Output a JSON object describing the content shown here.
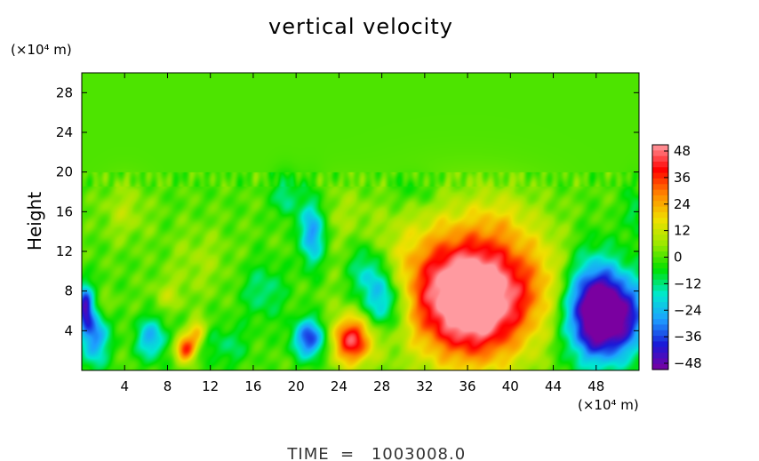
{
  "chart_data": {
    "type": "heatmap",
    "title": "vertical velocity",
    "ylabel": "Height",
    "y_units": "(×10⁴ m)",
    "x_units": "(×10⁴ m)",
    "xlim": [
      0,
      52
    ],
    "ylim": [
      0,
      30
    ],
    "x_ticks": [
      4,
      8,
      12,
      16,
      20,
      24,
      28,
      32,
      36,
      40,
      44,
      48
    ],
    "y_ticks": [
      4,
      8,
      12,
      16,
      20,
      24,
      28
    ],
    "colorbar": {
      "ticks": [
        48,
        36,
        24,
        12,
        0,
        -12,
        -24,
        -36,
        -48
      ],
      "tick_labels": [
        "48",
        "36",
        "24",
        "12",
        "0",
        "−12",
        "−24",
        "−36",
        "−48"
      ],
      "range": [
        -48,
        48
      ],
      "colors": [
        "#7a00a0",
        "#1a1ad8",
        "#1ea0ff",
        "#00e8d0",
        "#00e000",
        "#9ae800",
        "#f0e000",
        "#ff8800",
        "#ff0000",
        "#ff9aa0"
      ]
    },
    "background_value": 0,
    "features": [
      {
        "x": 36.5,
        "y": 6.5,
        "value": 46,
        "sx": 3.6,
        "sy": 4.2
      },
      {
        "x": 35.5,
        "y": 9.5,
        "value": 24,
        "sx": 5.5,
        "sy": 4.5
      },
      {
        "x": 25.2,
        "y": 3.0,
        "value": 40,
        "sx": 1.4,
        "sy": 1.7
      },
      {
        "x": 9.7,
        "y": 2.2,
        "value": 36,
        "sx": 0.7,
        "sy": 0.9
      },
      {
        "x": 10.8,
        "y": 4.0,
        "value": 20,
        "sx": 0.6,
        "sy": 0.8
      },
      {
        "x": 49.5,
        "y": 5.5,
        "value": -48,
        "sx": 2.4,
        "sy": 3.0
      },
      {
        "x": 47.5,
        "y": 6.5,
        "value": -30,
        "sx": 1.8,
        "sy": 3.8
      },
      {
        "x": 21.3,
        "y": 3.2,
        "value": -36,
        "sx": 1.1,
        "sy": 1.4
      },
      {
        "x": 21.5,
        "y": 14.0,
        "value": -30,
        "sx": 0.8,
        "sy": 2.4
      },
      {
        "x": 28.2,
        "y": 7.0,
        "value": -28,
        "sx": 1.4,
        "sy": 2.2
      },
      {
        "x": 26.5,
        "y": 10.0,
        "value": -18,
        "sx": 1.2,
        "sy": 2.0
      },
      {
        "x": 6.5,
        "y": 3.2,
        "value": -24,
        "sx": 1.0,
        "sy": 1.5
      },
      {
        "x": 1.2,
        "y": 3.5,
        "value": -30,
        "sx": 0.9,
        "sy": 2.2
      },
      {
        "x": 0.3,
        "y": 6.5,
        "value": -36,
        "sx": 0.5,
        "sy": 1.5
      },
      {
        "x": 19.0,
        "y": 17.5,
        "value": -14,
        "sx": 0.8,
        "sy": 1.5
      },
      {
        "x": 17.0,
        "y": 8.0,
        "value": -12,
        "sx": 1.5,
        "sy": 2.0
      },
      {
        "x": 13.5,
        "y": 2.5,
        "value": -10,
        "sx": 1.5,
        "sy": 1.5
      },
      {
        "x": 43.0,
        "y": 9.0,
        "value": 6,
        "sx": 2.5,
        "sy": 3.5
      },
      {
        "x": 4.0,
        "y": 16.0,
        "value": 8,
        "sx": 1.5,
        "sy": 2.0
      },
      {
        "x": 11.0,
        "y": 11.0,
        "value": 6,
        "sx": 2.0,
        "sy": 2.5
      },
      {
        "x": 39.0,
        "y": 15.5,
        "value": 6,
        "sx": 2.0,
        "sy": 2.0
      },
      {
        "x": 24.0,
        "y": 16.0,
        "value": 5,
        "sx": 2.0,
        "sy": 2.0
      },
      {
        "x": 31.0,
        "y": 18.0,
        "value": -6,
        "sx": 1.5,
        "sy": 1.2
      },
      {
        "x": 8.0,
        "y": 7.5,
        "value": 8,
        "sx": 1.0,
        "sy": 1.2
      },
      {
        "x": 2.0,
        "y": 6.5,
        "value": 10,
        "sx": 0.7,
        "sy": 0.8
      },
      {
        "x": 51.5,
        "y": 16.0,
        "value": -10,
        "sx": 0.6,
        "sy": 1.8
      }
    ]
  },
  "footer": {
    "time_label": "TIME",
    "equals": "=",
    "time_value": "1003008.0"
  }
}
